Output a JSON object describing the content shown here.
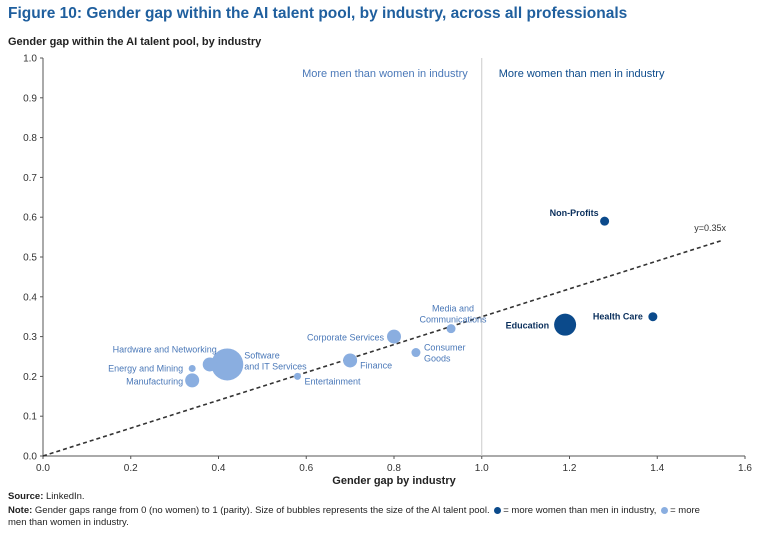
{
  "figure": {
    "title": "Figure 10: Gender gap within the AI talent pool, by industry, across all professionals"
  },
  "colors": {
    "dark": "#0b4a8b",
    "light": "#8aaee0",
    "text_light": "#4a78b8",
    "grid_divider": "#cccccc",
    "axis": "#555555"
  },
  "chart_data": {
    "type": "scatter",
    "title": "Figure 10: Gender gap within the AI talent pool, by industry, across all professionals",
    "xlabel": "Gender gap by industry",
    "ylabel": "Gender gap within the AI talent pool, by industry",
    "xlim": [
      0.0,
      1.6
    ],
    "ylim": [
      0.0,
      1.0
    ],
    "xticks": [
      "0.0",
      "0.2",
      "0.4",
      "0.6",
      "0.8",
      "1.0",
      "1.2",
      "1.4",
      "1.6"
    ],
    "yticks": [
      "0.0",
      "0.1",
      "0.2",
      "0.3",
      "0.4",
      "0.5",
      "0.6",
      "0.7",
      "0.8",
      "0.9",
      "1.0"
    ],
    "grid": false,
    "divider_x": 1.0,
    "region_labels": {
      "left": "More men than women in industry",
      "right": "More women than men in industry"
    },
    "trend_line": {
      "label": "y=0.35x",
      "slope": 0.35,
      "x_range": [
        0.0,
        1.55
      ]
    },
    "points": [
      {
        "name": "Non-Profits",
        "x": 1.28,
        "y": 0.59,
        "size": "small",
        "group": "women"
      },
      {
        "name": "Health Care",
        "x": 1.39,
        "y": 0.35,
        "size": "small",
        "group": "women"
      },
      {
        "name": "Education",
        "x": 1.19,
        "y": 0.33,
        "size": "large",
        "group": "women"
      },
      {
        "name": "Media and Communications",
        "x": 0.93,
        "y": 0.32,
        "size": "small",
        "group": "men"
      },
      {
        "name": "Corporate Services",
        "x": 0.8,
        "y": 0.3,
        "size": "medium",
        "group": "men"
      },
      {
        "name": "Consumer Goods",
        "x": 0.85,
        "y": 0.26,
        "size": "small",
        "group": "men"
      },
      {
        "name": "Finance",
        "x": 0.7,
        "y": 0.24,
        "size": "medium",
        "group": "men"
      },
      {
        "name": "Entertainment",
        "x": 0.58,
        "y": 0.2,
        "size": "tiny",
        "group": "men"
      },
      {
        "name": "Software and IT Services",
        "x": 0.42,
        "y": 0.23,
        "size": "xlarge",
        "group": "men"
      },
      {
        "name": "Hardware and Networking",
        "x": 0.38,
        "y": 0.23,
        "size": "medium",
        "group": "men"
      },
      {
        "name": "Energy and Mining",
        "x": 0.34,
        "y": 0.22,
        "size": "tiny",
        "group": "men"
      },
      {
        "name": "Manufacturing",
        "x": 0.34,
        "y": 0.19,
        "size": "medium",
        "group": "men"
      }
    ],
    "point_label_lines": {
      "Media and Communications": [
        "Media and",
        "Communications"
      ],
      "Consumer Goods": [
        "Consumer",
        "Goods"
      ],
      "Software and IT Services": [
        "Software",
        "and IT Services"
      ]
    }
  },
  "footer": {
    "source_label": "Source:",
    "source_text": "LinkedIn.",
    "note_label": "Note:",
    "note_text_1": "Gender gaps range from 0 (no women) to 1 (parity). Size of bubbles represents the size of the AI talent pool.",
    "note_text_2": "= more women than men in industry,",
    "note_text_3": "= more",
    "note_text_4": "men than women in industry."
  }
}
